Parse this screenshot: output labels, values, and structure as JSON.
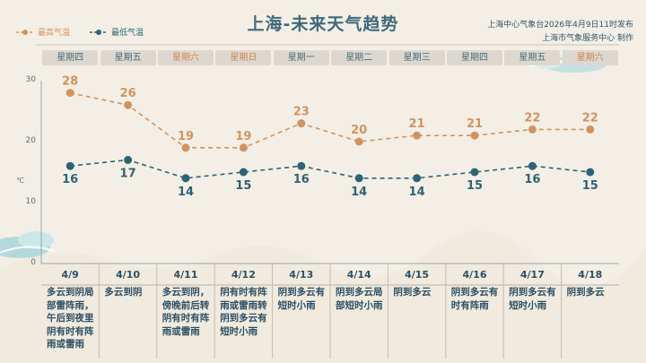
{
  "title": "上海-未来天气趋势",
  "issuer": [
    "上海中心气象台2026年4月9日11时发布",
    "上海市气象服务中心 制作"
  ],
  "colors": {
    "high": "#d2935f",
    "low": "#2e6375",
    "weekend": "#d2834f",
    "text": "#2d4f63"
  },
  "chart_data": {
    "type": "line",
    "categories": [
      "星期四",
      "星期五",
      "星期六",
      "星期日",
      "星期一",
      "星期二",
      "星期三",
      "星期四",
      "星期五",
      "星期六"
    ],
    "dates": [
      "4/9",
      "4/10",
      "4/11",
      "4/12",
      "4/13",
      "4/14",
      "4/15",
      "4/16",
      "4/17",
      "4/18"
    ],
    "series": [
      {
        "name": "最高气温",
        "values": [
          28,
          26,
          19,
          19,
          23,
          20,
          21,
          21,
          22,
          22
        ]
      },
      {
        "name": "最低气温",
        "values": [
          16,
          17,
          14,
          15,
          16,
          14,
          14,
          15,
          16,
          15
        ]
      }
    ],
    "ylim": [
      0,
      30
    ],
    "yticks": [
      0,
      10,
      20,
      30
    ],
    "yunit": "℃",
    "weekend": [
      false,
      false,
      true,
      true,
      false,
      false,
      false,
      false,
      false,
      true
    ]
  },
  "descriptions": [
    [
      "多云到阴局",
      "部雷阵雨，",
      "午后到夜里",
      "阴有时有阵",
      "雨或雷雨"
    ],
    [
      "多云到阴"
    ],
    [
      "多云到阴，",
      "傍晚前后转",
      "阴有时有阵",
      "雨或雷雨"
    ],
    [
      "阴有时有阵",
      "雨或雷雨转",
      "阴到多云有",
      "短时小雨"
    ],
    [
      "阴到多云有",
      "短时小雨"
    ],
    [
      "阴到多云局",
      "部短时小雨"
    ],
    [
      "阴到多云"
    ],
    [
      "阴到多云有",
      "时有阵雨"
    ],
    [
      "阴到多云有",
      "短时小雨"
    ],
    [
      "阴到多云"
    ]
  ]
}
